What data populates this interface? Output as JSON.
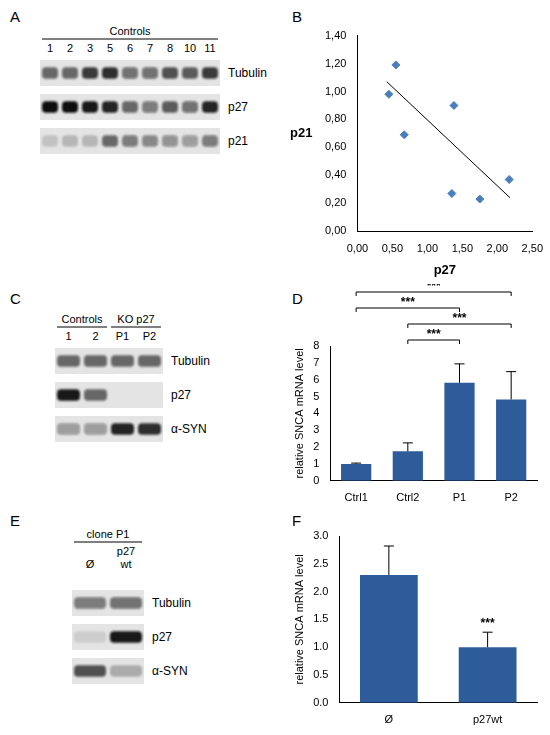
{
  "blots": [
    {
      "panel": "A",
      "groups": [
        {
          "label": "Controls",
          "from": "1",
          "to": "11"
        }
      ],
      "lanes": [
        "1",
        "2",
        "3",
        "5",
        "6",
        "7",
        "8",
        "10",
        "11"
      ],
      "rows": [
        {
          "label": "Tubulin",
          "bands": [
            0.6,
            0.6,
            0.8,
            0.85,
            0.55,
            0.55,
            0.7,
            0.65,
            0.8
          ]
        },
        {
          "label": "p27",
          "bands": [
            1.0,
            1.0,
            0.95,
            0.9,
            0.6,
            0.5,
            0.65,
            0.55,
            0.9
          ]
        },
        {
          "label": "p21",
          "bands": [
            0.15,
            0.2,
            0.2,
            0.6,
            0.5,
            0.45,
            0.4,
            0.35,
            0.5
          ]
        }
      ]
    },
    {
      "panel": "C",
      "groups": [
        {
          "label": "Controls",
          "from": "1",
          "to": "2"
        },
        {
          "label": "KO p27",
          "from": "P1",
          "to": "P2"
        }
      ],
      "lanes": [
        "1",
        "2",
        "P1",
        "P2"
      ],
      "rows": [
        {
          "label": "Tubulin",
          "bands": [
            0.6,
            0.6,
            0.6,
            0.6
          ]
        },
        {
          "label": "p27",
          "bands": [
            0.95,
            0.6,
            0.0,
            0.0
          ]
        },
        {
          "label": "α-SYN",
          "bands": [
            0.35,
            0.35,
            0.9,
            0.85
          ]
        }
      ]
    },
    {
      "panel": "E",
      "groups": [
        {
          "label": "clone P1",
          "from": "Ø",
          "to": "p27 wt"
        }
      ],
      "lanes": [
        "Ø",
        "p27 wt"
      ],
      "rows": [
        {
          "label": "Tubulin",
          "bands": [
            0.5,
            0.55
          ]
        },
        {
          "label": "p27",
          "bands": [
            0.1,
            0.95
          ]
        },
        {
          "label": "α-SYN",
          "bands": [
            0.7,
            0.25
          ]
        }
      ]
    }
  ],
  "chart_data": [
    {
      "panel": "B",
      "type": "scatter",
      "x": [
        0.45,
        0.55,
        0.67,
        1.35,
        1.38,
        1.75,
        2.17
      ],
      "values": [
        0.98,
        1.19,
        0.69,
        0.27,
        0.9,
        0.23,
        0.37
      ],
      "color": "#4a7ebb",
      "marker": "diamond",
      "trendline": {
        "x": [
          0.42,
          2.18
        ],
        "values": [
          1.07,
          0.24
        ],
        "color": "#000000",
        "line_style": "solid"
      },
      "x_label": "p27",
      "y_label": "p21",
      "xlim": [
        0,
        2.5
      ],
      "xticks": [
        {
          "value": 0,
          "label": "0,00"
        },
        {
          "value": 0.5,
          "label": "0,50"
        },
        {
          "value": 1,
          "label": "1,00"
        },
        {
          "value": 1.5,
          "label": "1,50"
        },
        {
          "value": 2,
          "label": "2,00"
        },
        {
          "value": 2.5,
          "label": "2,50"
        }
      ],
      "ylim": [
        0,
        1.4
      ],
      "yticks": [
        {
          "value": 0,
          "label": "0,00"
        },
        {
          "value": 0.2,
          "label": "0,20"
        },
        {
          "value": 0.4,
          "label": "0,40"
        },
        {
          "value": 0.6,
          "label": "0,60"
        },
        {
          "value": 0.8,
          "label": "0,80"
        },
        {
          "value": 1,
          "label": "1,00"
        },
        {
          "value": 1.2,
          "label": "1,20"
        },
        {
          "value": 1.4,
          "label": "1,40"
        }
      ],
      "grid": false
    },
    {
      "panel": "D",
      "type": "bar",
      "categories": [
        "Ctrl1",
        "Ctrl2",
        "P1",
        "P2"
      ],
      "values": [
        1.0,
        1.75,
        5.82,
        4.83
      ],
      "errors": [
        0.05,
        0.5,
        1.12,
        1.65
      ],
      "color": "#2e5c9a",
      "y_label": "relative SNCA mRNA level",
      "ylim": [
        0,
        8
      ],
      "yticks": [
        0,
        1,
        2,
        3,
        4,
        5,
        6,
        7,
        8
      ],
      "significance": [
        {
          "from": "Ctrl1",
          "to": "P2",
          "label": "***"
        },
        {
          "from": "Ctrl1",
          "to": "P1",
          "label": "***"
        },
        {
          "from": "Ctrl2",
          "to": "P2",
          "label": "***"
        },
        {
          "from": "Ctrl2",
          "to": "P1",
          "label": "***"
        }
      ],
      "grid": false
    },
    {
      "panel": "F",
      "type": "bar",
      "categories": [
        "Ø",
        "p27wt"
      ],
      "values": [
        2.3,
        1.0
      ],
      "errors": [
        0.52,
        0.27
      ],
      "color": "#2e5c9a",
      "y_label": "relative SNCA mRNA level",
      "ylim": [
        0,
        3
      ],
      "yticks": [
        {
          "value": 0,
          "label": "0.0"
        },
        0.5,
        {
          "value": 1,
          "label": "1.0"
        },
        1.5,
        {
          "value": 2,
          "label": "2.0"
        },
        2.5,
        {
          "value": 3,
          "label": "3.0"
        }
      ],
      "significance": [
        {
          "from": "p27wt",
          "to": "p27wt",
          "label": "***"
        }
      ],
      "grid": false
    }
  ]
}
